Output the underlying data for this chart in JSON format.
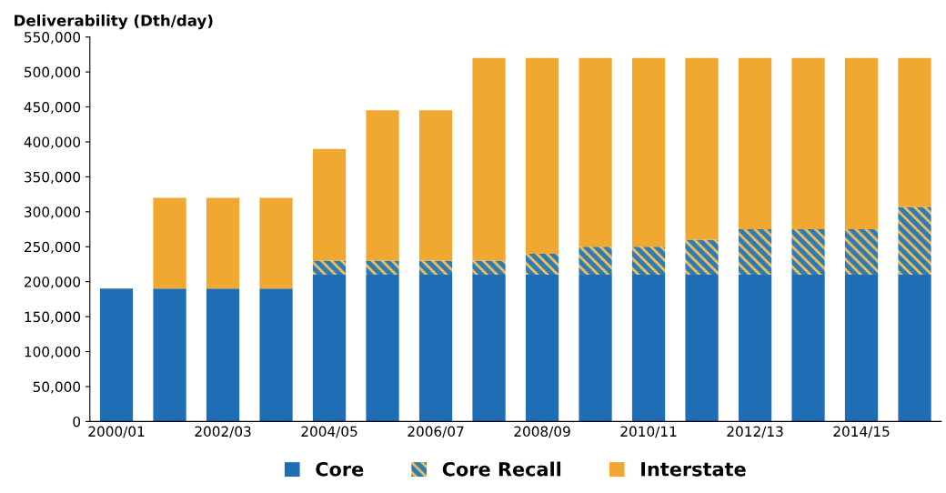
{
  "chart_data": {
    "type": "bar",
    "stacked": true,
    "ylabel": "Deliverability (Dth/day)",
    "categories": [
      "2000/01",
      null,
      "2002/03",
      null,
      "2004/05",
      null,
      "2006/07",
      null,
      "2008/09",
      null,
      "2010/11",
      null,
      "2012/13",
      null,
      "2014/15",
      null
    ],
    "series": [
      {
        "name": "Core",
        "color": "#1f6db5",
        "values": [
          190000,
          190000,
          190000,
          190000,
          210000,
          210000,
          210000,
          210000,
          210000,
          210000,
          210000,
          210000,
          210000,
          210000,
          210000,
          210000
        ]
      },
      {
        "name": "Core Recall",
        "color": "#2f7ab0",
        "values": [
          0,
          0,
          0,
          0,
          20000,
          20000,
          20000,
          20000,
          30000,
          40000,
          40000,
          50000,
          65000,
          65000,
          65000,
          97000
        ]
      },
      {
        "name": "Interstate",
        "color": "#f0a830",
        "values": [
          0,
          130000,
          130000,
          130000,
          160000,
          215000,
          215000,
          290000,
          280000,
          270000,
          270000,
          260000,
          245000,
          245000,
          245000,
          213000
        ]
      }
    ],
    "ylim": [
      0,
      550000
    ],
    "yticks": [
      {
        "value": 0,
        "label": "0"
      },
      {
        "value": 50000,
        "label": "50,000"
      },
      {
        "value": 100000,
        "label": "100,000"
      },
      {
        "value": 150000,
        "label": "150,000"
      },
      {
        "value": 200000,
        "label": "200,000"
      },
      {
        "value": 250000,
        "label": "250,000"
      },
      {
        "value": 300000,
        "label": "300,000"
      },
      {
        "value": 350000,
        "label": "350,000"
      },
      {
        "value": 400000,
        "label": "400,000"
      },
      {
        "value": 450000,
        "label": "450,000"
      },
      {
        "value": 500000,
        "label": "500,000"
      },
      {
        "value": 550000,
        "label": "550,000"
      }
    ],
    "legend": "bottom",
    "grid": false
  }
}
